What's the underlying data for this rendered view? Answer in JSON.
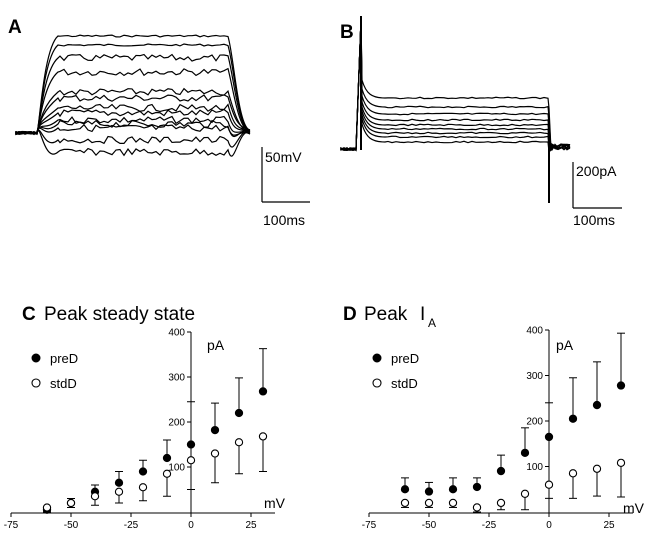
{
  "panels": {
    "A": {
      "letter": "A",
      "scale_bar": {
        "vertical_label": "50mV",
        "horizontal_label": "100ms"
      }
    },
    "B": {
      "letter": "B",
      "scale_bar": {
        "vertical_label": "200pA",
        "horizontal_label": "100ms"
      }
    }
  },
  "chart_data": [
    {
      "panel": "C",
      "type": "scatter",
      "title": "Peak steady state",
      "xlabel": "mV",
      "ylabel": "pA",
      "xlim": [
        -75,
        35
      ],
      "ylim": [
        0,
        400
      ],
      "x_ticks": [
        -75,
        -50,
        -25,
        0,
        25
      ],
      "y_ticks": [
        100,
        200,
        300,
        400
      ],
      "legend_position": "top-left",
      "series": [
        {
          "name": "preD",
          "marker": "filled",
          "x": [
            -60,
            -50,
            -40,
            -30,
            -20,
            -10,
            0,
            10,
            20,
            30
          ],
          "y": [
            5,
            20,
            45,
            65,
            90,
            120,
            150,
            182,
            220,
            268
          ],
          "error": [
            5,
            10,
            15,
            25,
            25,
            40,
            95,
            60,
            78,
            95
          ]
        },
        {
          "name": "stdD",
          "marker": "open",
          "x": [
            -60,
            -50,
            -40,
            -30,
            -20,
            -10,
            0,
            10,
            20,
            30
          ],
          "y": [
            10,
            20,
            35,
            45,
            55,
            85,
            115,
            130,
            155,
            168
          ],
          "error": [
            10,
            10,
            20,
            25,
            30,
            50,
            65,
            65,
            70,
            78
          ]
        }
      ]
    },
    {
      "panel": "D",
      "type": "scatter",
      "title": "Peak",
      "title_symbol": "I",
      "title_subscript": "A",
      "xlabel": "mV",
      "ylabel": "pA",
      "xlim": [
        -75,
        35
      ],
      "ylim": [
        0,
        400
      ],
      "x_ticks": [
        -75,
        -50,
        -25,
        0,
        25
      ],
      "y_ticks": [
        100,
        200,
        300,
        400
      ],
      "legend_position": "top-left",
      "series": [
        {
          "name": "preD",
          "marker": "filled",
          "x": [
            -60,
            -50,
            -40,
            -30,
            -20,
            -10,
            0,
            10,
            20,
            30
          ],
          "y": [
            50,
            45,
            50,
            55,
            90,
            130,
            165,
            205,
            235,
            278
          ],
          "error": [
            25,
            20,
            25,
            20,
            35,
            55,
            75,
            90,
            95,
            115
          ]
        },
        {
          "name": "stdD",
          "marker": "open",
          "x": [
            -60,
            -50,
            -40,
            -30,
            -20,
            -10,
            0,
            10,
            20,
            30
          ],
          "y": [
            20,
            20,
            20,
            10,
            20,
            40,
            60,
            85,
            95,
            108
          ],
          "error": [
            10,
            10,
            10,
            10,
            15,
            35,
            30,
            55,
            60,
            75
          ]
        }
      ]
    }
  ]
}
